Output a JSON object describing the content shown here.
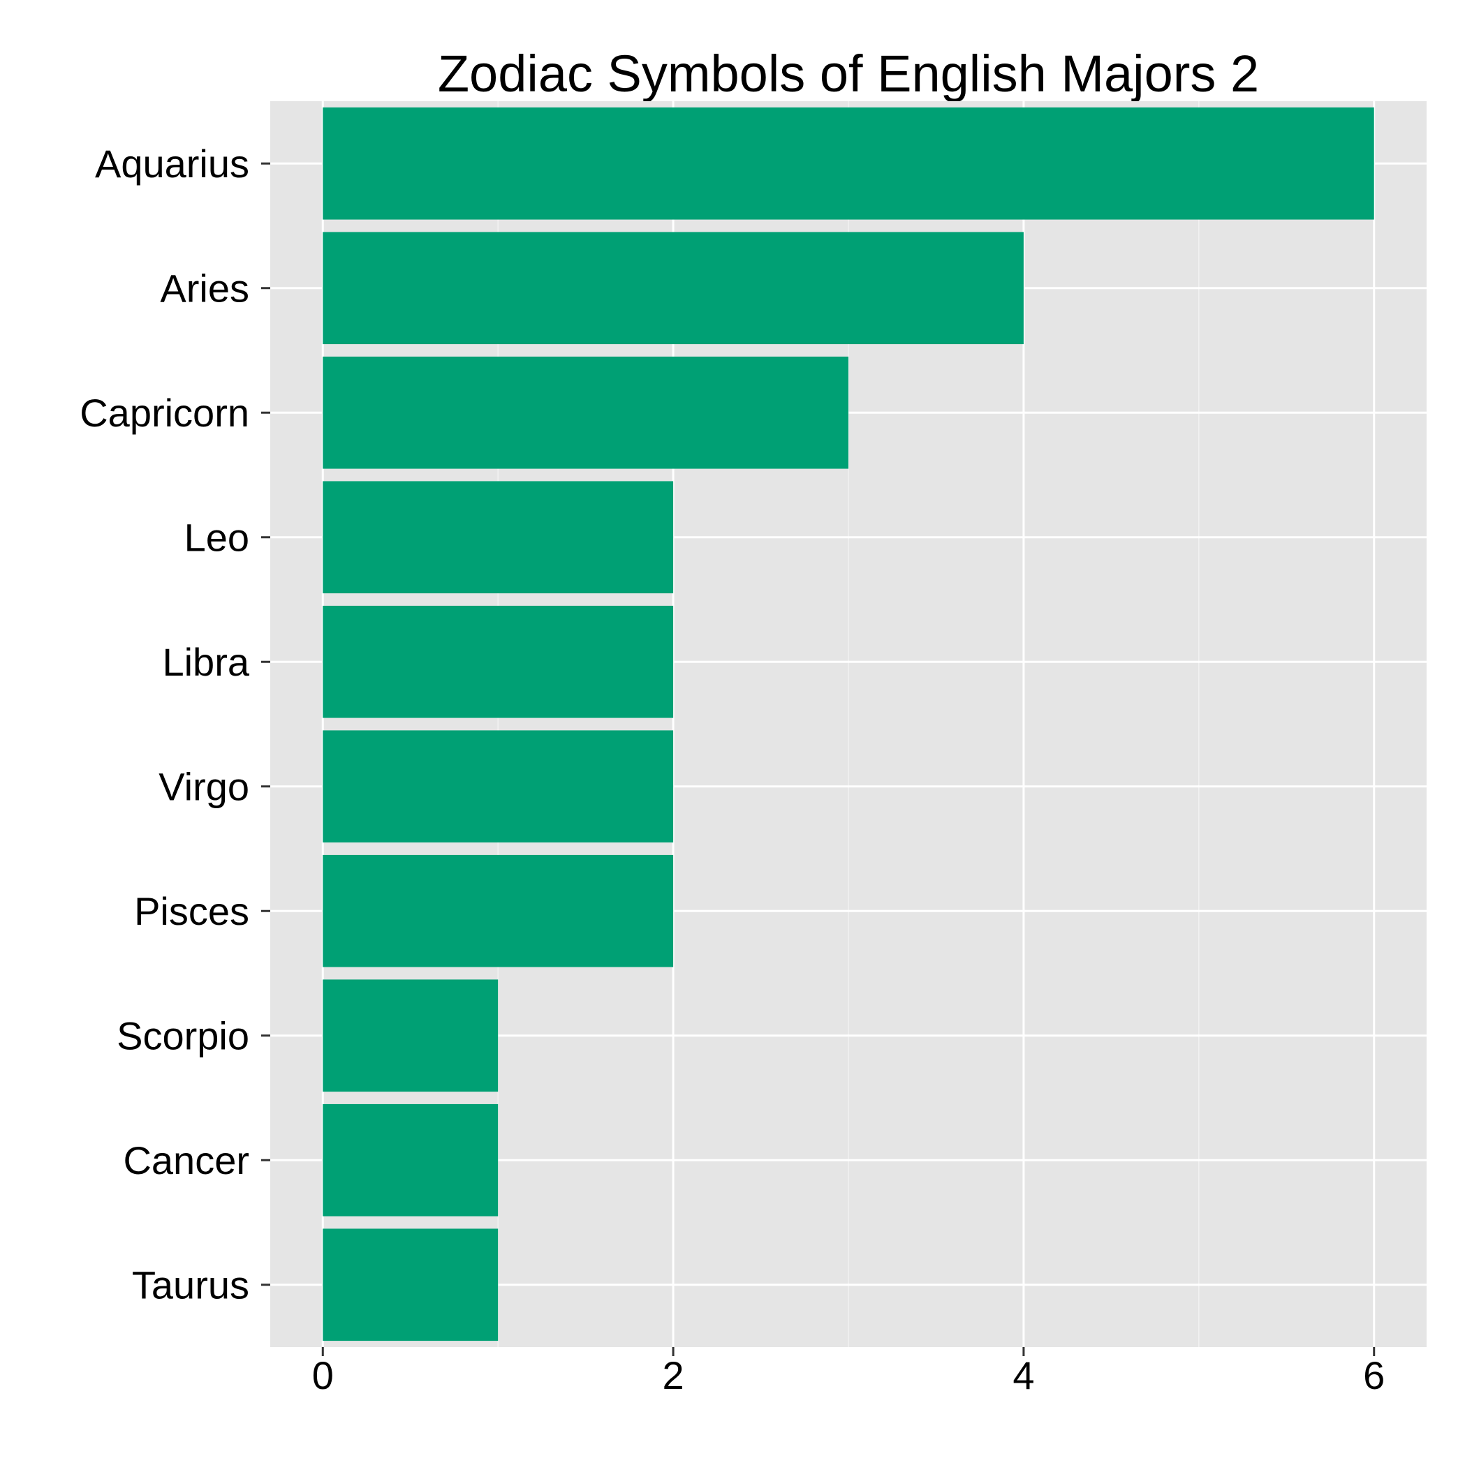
{
  "chart_data": {
    "type": "bar",
    "orientation": "horizontal",
    "title": "Zodiac Symbols of English Majors 2",
    "xlabel": "",
    "ylabel": "",
    "categories": [
      "Aquarius",
      "Aries",
      "Capricorn",
      "Leo",
      "Libra",
      "Virgo",
      "Pisces",
      "Scorpio",
      "Cancer",
      "Taurus"
    ],
    "values": [
      6,
      4,
      3,
      2,
      2,
      2,
      2,
      1,
      1,
      1
    ],
    "xlim": [
      -0.3,
      6.3
    ],
    "x_ticks": [
      0,
      2,
      4,
      6
    ],
    "grid": true,
    "legend": "none",
    "colors": {
      "bar": "#00A074",
      "panel_background": "#E5E5E5",
      "grid_major": "#FFFFFF",
      "grid_minor": "#F2F2F2",
      "tick": "#333333"
    }
  }
}
